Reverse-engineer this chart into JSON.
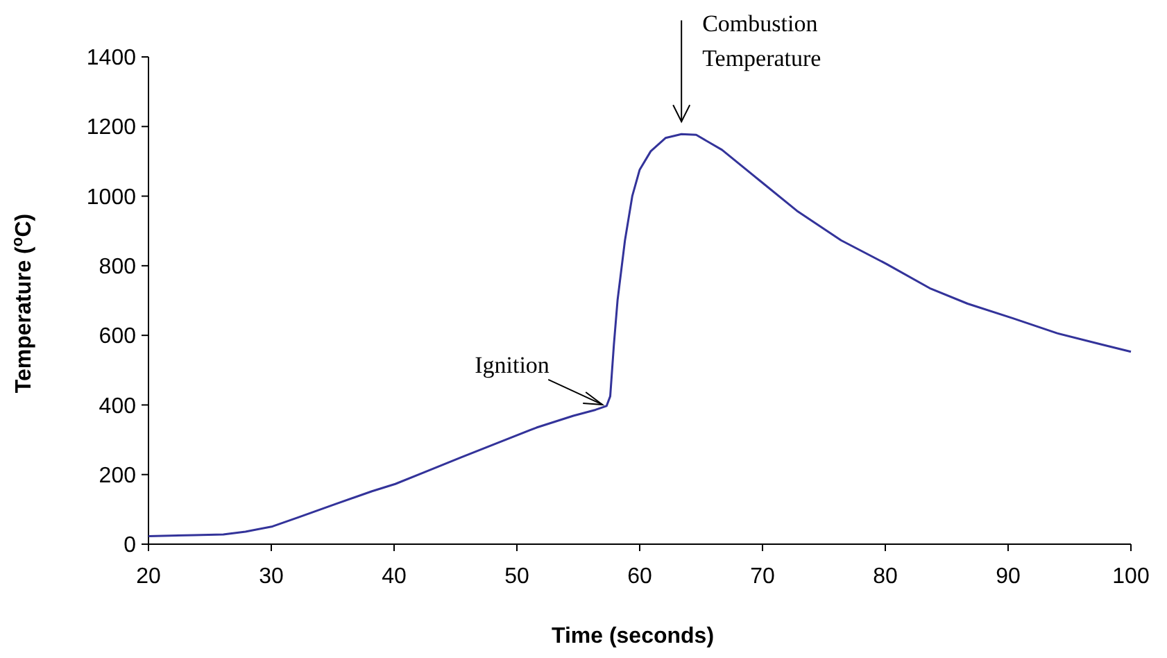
{
  "chart_data": {
    "type": "line",
    "xlabel": "Time (seconds)",
    "ylabel": "Temperature ($^{o}$C)",
    "x": [
      20,
      23.7,
      26.1,
      27.9,
      30.1,
      32.2,
      35.2,
      38.2,
      40.1,
      42.5,
      45.5,
      48.5,
      51.6,
      54.6,
      56.4,
      57.3,
      57.6,
      57.9,
      58.2,
      58.8,
      59.4,
      60,
      60.9,
      62.1,
      63.4,
      64.6,
      66.7,
      69.8,
      72.8,
      76.4,
      80.1,
      83.7,
      86.7,
      90.4,
      94,
      97.6,
      100
    ],
    "series": [
      {
        "color": "#33339a",
        "values": [
          23,
          26,
          28,
          36,
          51,
          77,
          115,
          152,
          173,
          207,
          250,
          292,
          335,
          369,
          386,
          397,
          425,
          574,
          702,
          873,
          1001,
          1076,
          1129,
          1167,
          1178,
          1176,
          1133,
          1044,
          958,
          873,
          805,
          734,
          691,
          649,
          606,
          574,
          553
        ]
      }
    ],
    "xlim": [
      20,
      100
    ],
    "xticks": [
      20,
      30,
      40,
      50,
      60,
      70,
      80,
      90,
      100
    ],
    "ylim": [
      0,
      1400
    ],
    "yticks": [
      0,
      200,
      400,
      600,
      800,
      1000,
      1200,
      1400
    ],
    "grid": false,
    "marker": "none",
    "line_style": "solid",
    "annotations": [
      {
        "text": "Ignition",
        "x": 57.3,
        "y": 397
      },
      {
        "text": "Combustion\nTemperature",
        "x": 63.4,
        "y": 1178
      }
    ]
  }
}
